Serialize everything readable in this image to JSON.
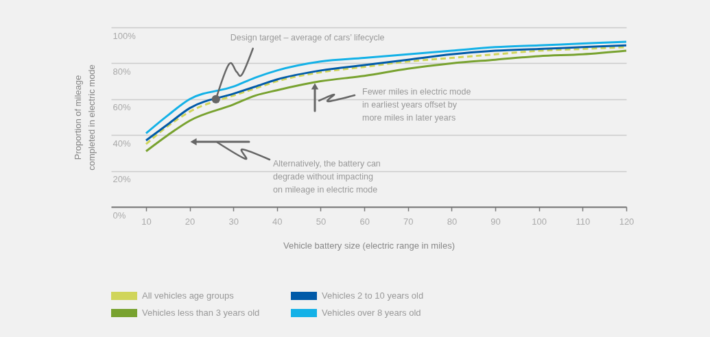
{
  "chart_data": {
    "type": "line",
    "xlabel": "Vehicle battery size (electric range in miles)",
    "ylabel": "Proportion of mileage\ncompleted in electric mode",
    "x": [
      10,
      15,
      20,
      30,
      35,
      40,
      50,
      60,
      70,
      80,
      90,
      100,
      110,
      120
    ],
    "xlim": [
      2,
      120
    ],
    "xticks": [
      10,
      20,
      30,
      40,
      50,
      60,
      70,
      80,
      90,
      100,
      110,
      120
    ],
    "ylim": [
      0,
      100
    ],
    "yticks": [
      {
        "value": 0,
        "label": "0%"
      },
      {
        "value": 20,
        "label": "20%"
      },
      {
        "value": 40,
        "label": "40%"
      },
      {
        "value": 60,
        "label": "60%"
      },
      {
        "value": 80,
        "label": "80%"
      },
      {
        "value": 100,
        "label": "100%"
      }
    ],
    "grid": "y",
    "legend": "bottom left",
    "marker": "none",
    "line_style": "solid",
    "series": [
      {
        "name": "All vehicles age groups",
        "color": "#d0d55a",
        "line_style": "dashed",
        "values": [
          35,
          45,
          53,
          62,
          66,
          70,
          75,
          78,
          81,
          83,
          85,
          87,
          88,
          89
        ]
      },
      {
        "name": "Vehicles less than 3 years old",
        "color": "#78a22f",
        "values": [
          31,
          40,
          48,
          57,
          62,
          65,
          70,
          73,
          77,
          80,
          82,
          84,
          85,
          87
        ]
      },
      {
        "name": "Vehicles 2 to 10 years old",
        "color": "#005aa8",
        "values": [
          37,
          46,
          55,
          63,
          67,
          71,
          76,
          79,
          82,
          85,
          87,
          88,
          89,
          90
        ]
      },
      {
        "name": "Vehicles over 8 years old",
        "color": "#13b1e7",
        "values": [
          41,
          51,
          60,
          67,
          72,
          76,
          81,
          83,
          85,
          87,
          89,
          90,
          91,
          92
        ]
      }
    ],
    "annotations": [
      {
        "text": "Design target – average of cars’ lifecycle",
        "x": 26,
        "y": 60
      },
      "Fewer miles in electric mode\nin earliest years offset by\nmore miles in later years",
      "Alternatively, the battery can\ndegrade without impacting\non mileage in electric mode"
    ]
  }
}
